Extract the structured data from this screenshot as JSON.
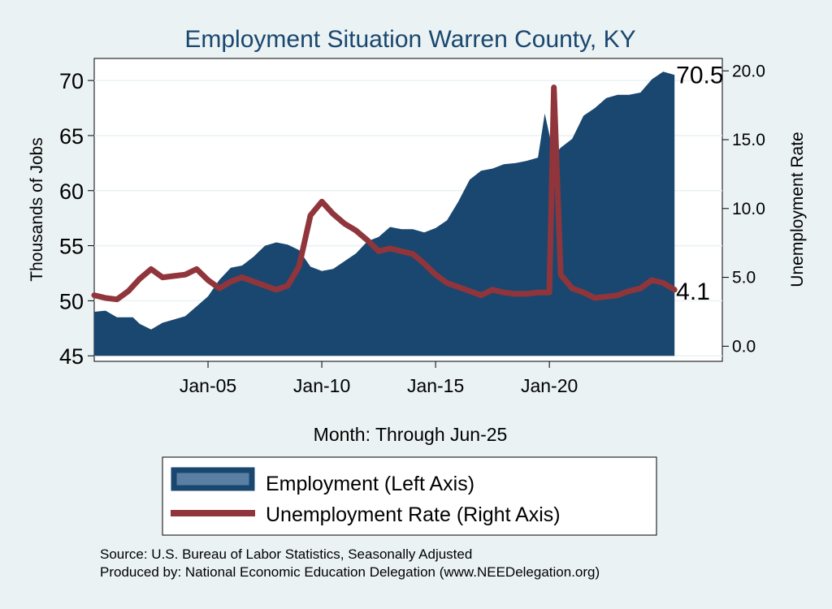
{
  "colors": {
    "background": "#eaf2f3",
    "plot_background": "#ffffff",
    "employment": "#1a476f",
    "employment_legend": "#5a7fa3",
    "unemployment": "#90353b",
    "title": "#1a476f",
    "grid": "#eaf2f3"
  },
  "chart_data": {
    "type": "area",
    "title": "Employment Situation Warren  County, KY",
    "xlabel": "Month: Through Jun-25",
    "ylabel_left": "Thousands of Jobs",
    "ylabel_right": "Unemployment Rate",
    "x_ticks": [
      "Jan-05",
      "Jan-10",
      "Jan-15",
      "Jan-20"
    ],
    "x_tick_years": [
      2005,
      2010,
      2015,
      2020
    ],
    "xlim": [
      2000.0,
      2027.6
    ],
    "ylim_left": [
      44.5,
      72.0
    ],
    "ylim_right": [
      -1.1,
      20.9
    ],
    "y_ticks_left": [
      "45",
      "50",
      "55",
      "60",
      "65",
      "70"
    ],
    "y_ticks_right": [
      "0.0",
      "5.0",
      "10.0",
      "15.0",
      "20.0"
    ],
    "grid": true,
    "legend_position": "bottom",
    "end_label_employment": "70.5",
    "end_label_unemployment": "4.1",
    "series": [
      {
        "name": "Employment (Left Axis)",
        "axis": "left",
        "style": "area",
        "points": [
          [
            2000.0,
            49.0
          ],
          [
            2000.5,
            49.1
          ],
          [
            2001.0,
            48.5
          ],
          [
            2001.7,
            48.5
          ],
          [
            2002.0,
            47.9
          ],
          [
            2002.5,
            47.4
          ],
          [
            2003.0,
            48.0
          ],
          [
            2003.5,
            48.3
          ],
          [
            2004.0,
            48.6
          ],
          [
            2004.5,
            49.5
          ],
          [
            2005.0,
            50.4
          ],
          [
            2005.5,
            51.9
          ],
          [
            2006.0,
            53.0
          ],
          [
            2006.5,
            53.2
          ],
          [
            2007.0,
            54.0
          ],
          [
            2007.5,
            55.0
          ],
          [
            2008.0,
            55.3
          ],
          [
            2008.5,
            55.1
          ],
          [
            2009.0,
            54.6
          ],
          [
            2009.5,
            53.1
          ],
          [
            2010.0,
            52.7
          ],
          [
            2010.5,
            52.9
          ],
          [
            2011.0,
            53.6
          ],
          [
            2011.5,
            54.3
          ],
          [
            2012.0,
            55.4
          ],
          [
            2012.5,
            55.8
          ],
          [
            2013.0,
            56.7
          ],
          [
            2013.5,
            56.5
          ],
          [
            2014.0,
            56.5
          ],
          [
            2014.5,
            56.2
          ],
          [
            2015.0,
            56.6
          ],
          [
            2015.5,
            57.3
          ],
          [
            2016.0,
            59.0
          ],
          [
            2016.5,
            61.0
          ],
          [
            2017.0,
            61.8
          ],
          [
            2017.5,
            62.0
          ],
          [
            2018.0,
            62.4
          ],
          [
            2018.5,
            62.5
          ],
          [
            2019.0,
            62.7
          ],
          [
            2019.5,
            63.0
          ],
          [
            2019.8,
            67.0
          ],
          [
            2020.2,
            63.2
          ],
          [
            2020.5,
            63.9
          ],
          [
            2021.0,
            64.7
          ],
          [
            2021.5,
            66.8
          ],
          [
            2022.0,
            67.5
          ],
          [
            2022.5,
            68.4
          ],
          [
            2023.0,
            68.7
          ],
          [
            2023.5,
            68.7
          ],
          [
            2024.0,
            68.9
          ],
          [
            2024.5,
            70.1
          ],
          [
            2025.0,
            70.8
          ],
          [
            2025.5,
            70.5
          ]
        ]
      },
      {
        "name": "Unemployment Rate (Right Axis)",
        "axis": "right",
        "style": "line",
        "points": [
          [
            2000.0,
            3.7
          ],
          [
            2000.5,
            3.5
          ],
          [
            2001.0,
            3.4
          ],
          [
            2001.5,
            4.0
          ],
          [
            2002.0,
            4.9
          ],
          [
            2002.5,
            5.6
          ],
          [
            2003.0,
            5.0
          ],
          [
            2003.5,
            5.1
          ],
          [
            2004.0,
            5.2
          ],
          [
            2004.5,
            5.6
          ],
          [
            2005.0,
            4.8
          ],
          [
            2005.5,
            4.2
          ],
          [
            2006.0,
            4.7
          ],
          [
            2006.5,
            5.0
          ],
          [
            2007.0,
            4.7
          ],
          [
            2007.5,
            4.4
          ],
          [
            2008.0,
            4.1
          ],
          [
            2008.5,
            4.4
          ],
          [
            2009.0,
            5.8
          ],
          [
            2009.5,
            9.5
          ],
          [
            2010.0,
            10.5
          ],
          [
            2010.5,
            9.6
          ],
          [
            2011.0,
            8.9
          ],
          [
            2011.5,
            8.4
          ],
          [
            2012.0,
            7.7
          ],
          [
            2012.5,
            6.9
          ],
          [
            2013.0,
            7.1
          ],
          [
            2013.5,
            6.9
          ],
          [
            2014.0,
            6.7
          ],
          [
            2014.5,
            6.0
          ],
          [
            2015.0,
            5.2
          ],
          [
            2015.5,
            4.6
          ],
          [
            2016.0,
            4.3
          ],
          [
            2016.5,
            4.0
          ],
          [
            2017.0,
            3.7
          ],
          [
            2017.5,
            4.1
          ],
          [
            2018.0,
            3.9
          ],
          [
            2018.5,
            3.8
          ],
          [
            2019.0,
            3.8
          ],
          [
            2019.5,
            3.9
          ],
          [
            2020.0,
            3.9
          ],
          [
            2020.2,
            18.8
          ],
          [
            2020.5,
            5.2
          ],
          [
            2021.0,
            4.2
          ],
          [
            2021.5,
            3.9
          ],
          [
            2022.0,
            3.5
          ],
          [
            2022.5,
            3.6
          ],
          [
            2023.0,
            3.7
          ],
          [
            2023.5,
            4.0
          ],
          [
            2024.0,
            4.2
          ],
          [
            2024.5,
            4.8
          ],
          [
            2025.0,
            4.6
          ],
          [
            2025.5,
            4.1
          ]
        ]
      }
    ]
  },
  "footer": {
    "source": "Source: U.S. Bureau of Labor Statistics, Seasonally Adjusted",
    "produced_by": "Produced by: National Economic Education Delegation (www.NEEDelegation.org)"
  }
}
